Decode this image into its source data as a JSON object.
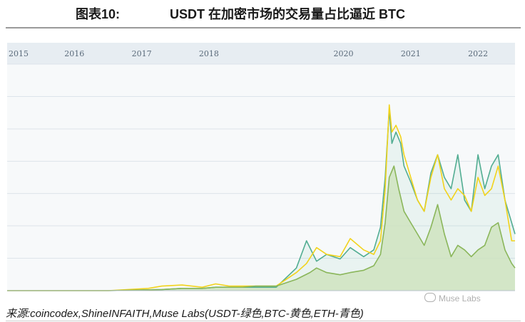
{
  "figure": {
    "label": "图表10:",
    "title": "USDT 在加密市场的交易量占比逼近 BTC",
    "source": "来源:coincodex,ShineINFAITH,Muse Labs(USDT-绿色,BTC-黄色,ETH-青色)",
    "watermark": "Muse Labs"
  },
  "colors": {
    "usdt": "#8ab65a",
    "usdt_fill": "#dbe9c4",
    "btc": "#f2d31b",
    "eth": "#52ad92",
    "grid": "#dde4ea",
    "band": "#e7edf2"
  },
  "chart_data": {
    "type": "line",
    "title": "USDT 在加密市场的交易量占比逼近 BTC",
    "x_ticks": [
      "2015",
      "2016",
      "2017",
      "2018",
      "2020",
      "2021",
      "2022"
    ],
    "x_tick_years": [
      2015,
      2016,
      2017,
      2018,
      2020,
      2021,
      2022
    ],
    "xlim": [
      2015.0,
      2022.55
    ],
    "ylim": [
      0,
      100
    ],
    "y_gridlines": [
      0,
      14.3,
      28.6,
      42.9,
      57.1,
      71.4,
      85.7,
      100
    ],
    "y_tick_labels": "none",
    "grid": true,
    "legend": "none",
    "series": [
      {
        "key": "usdt",
        "area": true,
        "x": [
          2015.0,
          2016.5,
          2017.3,
          2017.6,
          2017.9,
          2018.1,
          2018.3,
          2018.5,
          2018.7,
          2019.0,
          2019.3,
          2019.5,
          2019.6,
          2019.75,
          2019.95,
          2020.1,
          2020.3,
          2020.45,
          2020.55,
          2020.62,
          2020.68,
          2020.75,
          2020.82,
          2020.9,
          2021.0,
          2021.1,
          2021.2,
          2021.3,
          2021.4,
          2021.5,
          2021.6,
          2021.7,
          2021.8,
          2021.9,
          2022.0,
          2022.1,
          2022.2,
          2022.3,
          2022.4,
          2022.5,
          2022.55
        ],
        "y": [
          0,
          0,
          0.5,
          1,
          1,
          1.5,
          1.5,
          1.5,
          2,
          2,
          5,
          8,
          10,
          8,
          7,
          8,
          9,
          11,
          16,
          30,
          50,
          55,
          45,
          35,
          30,
          25,
          20,
          28,
          38,
          25,
          15,
          20,
          18,
          15,
          18,
          20,
          28,
          30,
          18,
          12,
          10
        ]
      },
      {
        "key": "btc",
        "area": false,
        "x": [
          2015.0,
          2016.5,
          2017.1,
          2017.3,
          2017.6,
          2017.9,
          2018.1,
          2018.3,
          2018.5,
          2018.7,
          2019.0,
          2019.3,
          2019.45,
          2019.6,
          2019.75,
          2019.95,
          2020.1,
          2020.3,
          2020.45,
          2020.55,
          2020.62,
          2020.68,
          2020.72,
          2020.78,
          2020.85,
          2020.9,
          2021.0,
          2021.1,
          2021.2,
          2021.3,
          2021.4,
          2021.5,
          2021.6,
          2021.7,
          2021.8,
          2021.9,
          2022.0,
          2022.1,
          2022.2,
          2022.3,
          2022.4,
          2022.5,
          2022.55
        ],
        "y": [
          0,
          0,
          1,
          2,
          2.5,
          1.5,
          3,
          2,
          2,
          2,
          2,
          8,
          12,
          19,
          16,
          15,
          23,
          18,
          16,
          22,
          45,
          82,
          70,
          73,
          68,
          60,
          50,
          40,
          35,
          50,
          60,
          45,
          40,
          45,
          42,
          35,
          50,
          42,
          45,
          55,
          40,
          22,
          22
        ]
      },
      {
        "key": "eth",
        "area": false,
        "x": [
          2015.0,
          2016.5,
          2017.3,
          2017.6,
          2017.9,
          2018.1,
          2018.3,
          2018.5,
          2018.7,
          2019.0,
          2019.3,
          2019.45,
          2019.6,
          2019.75,
          2019.95,
          2020.1,
          2020.3,
          2020.45,
          2020.55,
          2020.62,
          2020.68,
          2020.72,
          2020.78,
          2020.85,
          2020.9,
          2021.0,
          2021.1,
          2021.2,
          2021.3,
          2021.4,
          2021.5,
          2021.6,
          2021.7,
          2021.8,
          2021.9,
          2022.0,
          2022.1,
          2022.2,
          2022.3,
          2022.4,
          2022.5,
          2022.55
        ],
        "y": [
          0,
          0,
          0.5,
          1,
          1,
          1.5,
          1.5,
          1.5,
          1.5,
          1.5,
          10,
          22,
          13,
          16,
          14,
          19,
          15,
          18,
          28,
          50,
          80,
          65,
          70,
          65,
          55,
          48,
          40,
          35,
          52,
          60,
          50,
          45,
          60,
          40,
          35,
          60,
          45,
          55,
          60,
          40,
          30,
          25
        ]
      }
    ]
  }
}
